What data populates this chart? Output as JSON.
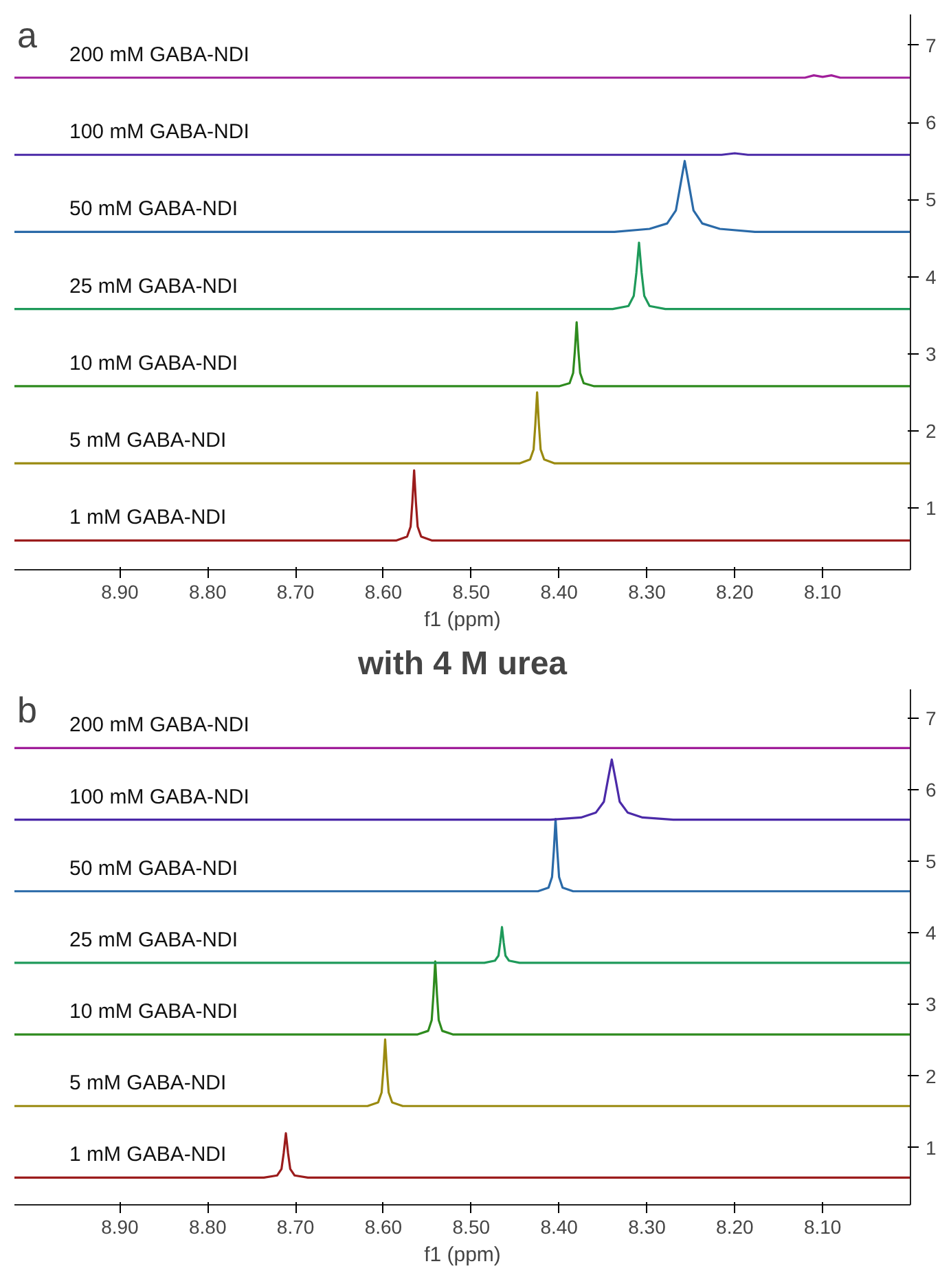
{
  "chart_data": [
    {
      "type": "line",
      "annotations": [
        "a"
      ],
      "xlabel": "f1 (ppm)",
      "xlim": [
        9.02,
        8.0
      ],
      "ylim": [
        0.2,
        7.4
      ],
      "xticks": [
        {
          "value": 8.9,
          "label": "8.90"
        },
        {
          "value": 8.8,
          "label": "8.80"
        },
        {
          "value": 8.7,
          "label": "8.70"
        },
        {
          "value": 8.6,
          "label": "8.60"
        },
        {
          "value": 8.5,
          "label": "8.50"
        },
        {
          "value": 8.4,
          "label": "8.40"
        },
        {
          "value": 8.3,
          "label": "8.30"
        },
        {
          "value": 8.2,
          "label": "8.20"
        },
        {
          "value": 8.1,
          "label": "8.10"
        }
      ],
      "yticks": [
        1,
        2,
        3,
        4,
        5,
        6,
        7
      ],
      "series": [
        {
          "name": "1 mM GABA-NDI",
          "color": "#9b1c1c",
          "x": [
            9.02,
            8.585,
            8.573,
            8.569,
            8.567,
            8.565,
            8.563,
            8.561,
            8.557,
            8.545,
            8.0
          ],
          "values": [
            0.58,
            0.58,
            0.63,
            0.76,
            1.08,
            1.49,
            1.08,
            0.76,
            0.63,
            0.58,
            0.58
          ]
        },
        {
          "name": "5 mM GABA-NDI",
          "color": "#9a8a10",
          "x": [
            9.02,
            8.445,
            8.433,
            8.429,
            8.427,
            8.425,
            8.423,
            8.421,
            8.417,
            8.405,
            8.0
          ],
          "values": [
            1.58,
            1.58,
            1.63,
            1.76,
            2.09,
            2.5,
            2.09,
            1.76,
            1.63,
            1.58,
            1.58
          ]
        },
        {
          "name": "10 mM GABA-NDI",
          "color": "#2e8b1e",
          "x": [
            9.02,
            8.4,
            8.388,
            8.384,
            8.382,
            8.38,
            8.378,
            8.376,
            8.372,
            8.36,
            8.0
          ],
          "values": [
            2.58,
            2.58,
            2.62,
            2.75,
            3.04,
            3.41,
            3.04,
            2.75,
            2.62,
            2.58,
            2.58
          ]
        },
        {
          "name": "25 mM GABA-NDI",
          "color": "#1e9a5a",
          "x": [
            9.02,
            8.339,
            8.321,
            8.315,
            8.312,
            8.309,
            8.306,
            8.303,
            8.297,
            8.279,
            8.0
          ],
          "values": [
            3.58,
            3.58,
            3.62,
            3.75,
            4.05,
            4.44,
            4.05,
            3.75,
            3.62,
            3.58,
            3.58
          ]
        },
        {
          "name": "50 mM GABA-NDI",
          "color": "#2a6aa8",
          "x": [
            9.02,
            8.337,
            8.297,
            8.277,
            8.267,
            8.262,
            8.257,
            8.252,
            8.247,
            8.237,
            8.217,
            8.177,
            8.0
          ],
          "values": [
            4.58,
            4.58,
            4.62,
            4.69,
            4.86,
            5.18,
            5.5,
            5.18,
            4.86,
            4.69,
            4.62,
            4.58,
            4.58
          ]
        },
        {
          "name": "100 mM GABA-NDI",
          "color": "#4b2aa8",
          "x": [
            9.02,
            8.215,
            8.2,
            8.185,
            8.0
          ],
          "values": [
            5.58,
            5.58,
            5.6,
            5.58,
            5.58
          ]
        },
        {
          "name": "200 mM GABA-NDI",
          "color": "#a01e9a",
          "x": [
            9.02,
            8.12,
            8.11,
            8.1,
            8.09,
            8.08,
            8.0
          ],
          "values": [
            6.58,
            6.58,
            6.61,
            6.59,
            6.61,
            6.58,
            6.58
          ]
        }
      ]
    },
    {
      "type": "line",
      "title": "with 4 M urea",
      "annotations": [
        "b"
      ],
      "xlabel": "f1 (ppm)",
      "xlim": [
        9.02,
        8.0
      ],
      "ylim": [
        0.2,
        7.4
      ],
      "xticks": [
        {
          "value": 8.9,
          "label": "8.90"
        },
        {
          "value": 8.8,
          "label": "8.80"
        },
        {
          "value": 8.7,
          "label": "8.70"
        },
        {
          "value": 8.6,
          "label": "8.60"
        },
        {
          "value": 8.5,
          "label": "8.50"
        },
        {
          "value": 8.4,
          "label": "8.40"
        },
        {
          "value": 8.3,
          "label": "8.30"
        },
        {
          "value": 8.2,
          "label": "8.20"
        },
        {
          "value": 8.1,
          "label": "8.10"
        }
      ],
      "yticks": [
        1,
        2,
        3,
        4,
        5,
        6,
        7
      ],
      "series": [
        {
          "name": "1 mM GABA-NDI",
          "color": "#9b1c1c",
          "x": [
            9.02,
            8.736,
            8.721,
            8.716,
            8.7135,
            8.711,
            8.7085,
            8.706,
            8.701,
            8.686,
            8.0
          ],
          "values": [
            0.58,
            0.58,
            0.61,
            0.7,
            0.92,
            1.2,
            0.92,
            0.7,
            0.61,
            0.58,
            0.58
          ]
        },
        {
          "name": "5 mM GABA-NDI",
          "color": "#9a8a10",
          "x": [
            9.02,
            8.618,
            8.606,
            8.602,
            8.6,
            8.598,
            8.596,
            8.594,
            8.59,
            8.578,
            8.0
          ],
          "values": [
            1.58,
            1.58,
            1.63,
            1.77,
            2.09,
            2.51,
            2.09,
            1.77,
            1.63,
            1.58,
            1.58
          ]
        },
        {
          "name": "10 mM GABA-NDI",
          "color": "#2e8b1e",
          "x": [
            9.02,
            8.561,
            8.549,
            8.545,
            8.543,
            8.541,
            8.539,
            8.537,
            8.533,
            8.521,
            8.0
          ],
          "values": [
            2.58,
            2.58,
            2.63,
            2.78,
            3.14,
            3.6,
            3.14,
            2.78,
            2.63,
            2.58,
            2.58
          ]
        },
        {
          "name": "25 mM GABA-NDI",
          "color": "#1e9a5a",
          "x": [
            9.02,
            8.485,
            8.473,
            8.469,
            8.467,
            8.465,
            8.463,
            8.461,
            8.457,
            8.445,
            8.0
          ],
          "values": [
            3.58,
            3.58,
            3.61,
            3.68,
            3.86,
            4.08,
            3.86,
            3.68,
            3.61,
            3.58,
            3.58
          ]
        },
        {
          "name": "50 mM GABA-NDI",
          "color": "#2a6aa8",
          "x": [
            9.02,
            8.424,
            8.412,
            8.408,
            8.406,
            8.404,
            8.402,
            8.4,
            8.396,
            8.384,
            8.0
          ],
          "values": [
            4.58,
            4.58,
            4.63,
            4.78,
            5.14,
            5.59,
            5.14,
            4.78,
            4.63,
            4.58,
            4.58
          ]
        },
        {
          "name": "100 mM GABA-NDI",
          "color": "#4b2aa8",
          "x": [
            9.02,
            8.41,
            8.375,
            8.358,
            8.349,
            8.3445,
            8.34,
            8.3355,
            8.331,
            8.322,
            8.305,
            8.27,
            8.0
          ],
          "values": [
            5.58,
            5.58,
            5.61,
            5.68,
            5.83,
            6.13,
            6.42,
            6.13,
            5.83,
            5.68,
            5.61,
            5.58,
            5.58
          ]
        },
        {
          "name": "200 mM GABA-NDI",
          "color": "#a01e9a",
          "x": [
            9.02,
            8.0
          ],
          "values": [
            6.58,
            6.58
          ]
        }
      ]
    }
  ]
}
